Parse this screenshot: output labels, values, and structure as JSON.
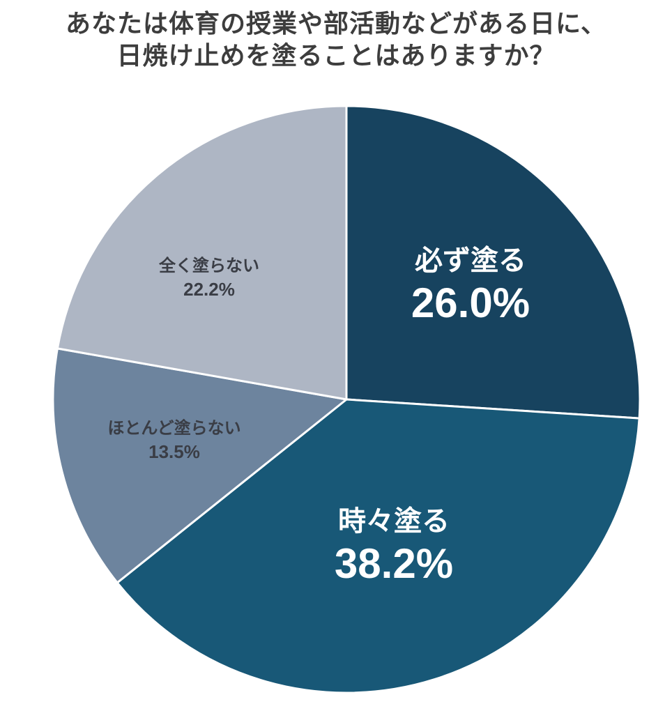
{
  "title": {
    "line1": "あなたは体育の授業や部活動などがある日に、",
    "line2": "日焼け止めを塗ることはありますか？"
  },
  "chart_data": {
    "type": "pie",
    "title": "あなたは体育の授業や部活動などがある日に、日焼け止めを塗ることはありますか？",
    "categories": [
      "必ず塗る",
      "時々塗る",
      "ほとんど塗らない",
      "全く塗らない"
    ],
    "values": [
      26.0,
      38.2,
      13.5,
      22.2
    ],
    "unit": "%",
    "colors": [
      "#17435f",
      "#185877",
      "#6d849e",
      "#aeb6c4"
    ],
    "start_angle": "12 o'clock",
    "direction": "clockwise",
    "legend": "none (labels inside slices)"
  },
  "labels": [
    {
      "name": "必ず塗る",
      "pct": "26.0%"
    },
    {
      "name": "時々塗る",
      "pct": "38.2%"
    },
    {
      "name": "ほとんど塗らない",
      "pct": "13.5%"
    },
    {
      "name": "全く塗らない",
      "pct": "22.2%"
    }
  ]
}
